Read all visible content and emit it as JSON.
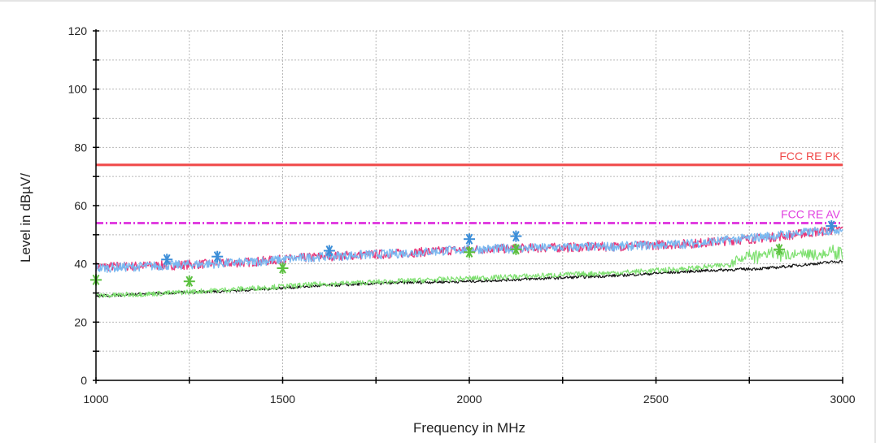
{
  "chart_data": {
    "type": "line",
    "title": "",
    "xlabel": "Frequency in MHz",
    "ylabel": "Level in dBµV/",
    "xlim": [
      1000,
      3000
    ],
    "ylim": [
      0,
      120
    ],
    "x_ticks": [
      1000,
      1500,
      2000,
      2500,
      3000
    ],
    "y_ticks": [
      0,
      20,
      40,
      60,
      80,
      100,
      120
    ],
    "grid": true,
    "limit_lines": [
      {
        "name": "FCC RE PK",
        "value": 74,
        "color": "#f04848",
        "style": "solid"
      },
      {
        "name": "FCC RE AV",
        "value": 54,
        "color": "#e040e0",
        "style": "dashdot"
      }
    ],
    "series": [
      {
        "color": "#e8387a",
        "x": [
          1000,
          1200,
          1400,
          1600,
          1800,
          2000,
          2200,
          2400,
          2600,
          2800,
          3000
        ],
        "values": [
          39,
          39.5,
          40.5,
          42.5,
          43.5,
          45,
          45.5,
          46,
          47,
          49,
          52
        ]
      },
      {
        "color": "#7ab8f0",
        "x": [
          1000,
          1200,
          1400,
          1600,
          1800,
          2000,
          2200,
          2400,
          2600,
          2800,
          3000
        ],
        "values": [
          38.5,
          39.5,
          40.5,
          42.5,
          43.5,
          45,
          45.5,
          46,
          47,
          49.5,
          52
        ]
      },
      {
        "color": "#111111",
        "x": [
          1000,
          1200,
          1400,
          1600,
          1800,
          2000,
          2200,
          2400,
          2600,
          2800,
          3000
        ],
        "values": [
          29,
          30,
          31,
          32.5,
          33.5,
          34,
          35,
          36,
          37.5,
          38.5,
          41
        ]
      },
      {
        "color": "#7ee070",
        "x": [
          1000,
          1200,
          1400,
          1600,
          1800,
          2000,
          2200,
          2400,
          2600,
          2800,
          3000
        ],
        "values": [
          29,
          30,
          31.5,
          33,
          34,
          35,
          36,
          37,
          38.5,
          41,
          42
        ]
      }
    ],
    "peak_markers": [
      {
        "x": 1190,
        "y": 41.5
      },
      {
        "x": 1325,
        "y": 42.5
      },
      {
        "x": 1625,
        "y": 44.5
      },
      {
        "x": 2000,
        "y": 48.5
      },
      {
        "x": 2125,
        "y": 49.5
      },
      {
        "x": 2970,
        "y": 53
      }
    ],
    "avg_markers": [
      {
        "x": 1000,
        "y": 34.5
      },
      {
        "x": 1250,
        "y": 34
      },
      {
        "x": 1500,
        "y": 38.5
      },
      {
        "x": 2000,
        "y": 44
      },
      {
        "x": 2125,
        "y": 45
      },
      {
        "x": 2830,
        "y": 45
      }
    ],
    "peak_marker_color": "#3c8ed8",
    "avg_marker_color": "#5cc040"
  }
}
